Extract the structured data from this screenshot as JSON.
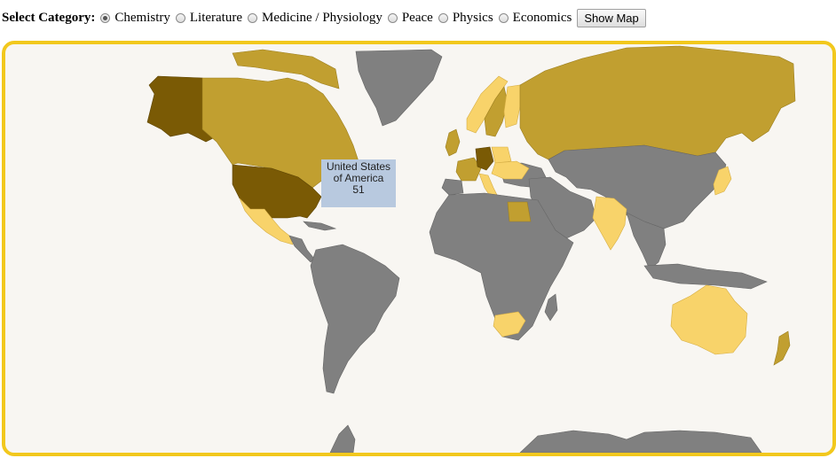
{
  "selector": {
    "label": "Select Category:",
    "options": [
      "Chemistry",
      "Literature",
      "Medicine / Physiology",
      "Peace",
      "Physics",
      "Economics"
    ],
    "selected": "Chemistry",
    "button_label": "Show Map"
  },
  "tooltip": {
    "country_line1": "United States",
    "country_line2": "of America",
    "count": "51"
  },
  "colors": {
    "frame": "#f2c81d",
    "ocean": "#f8f6f2",
    "no_data": "#808080",
    "level_dark": "#7a5a05",
    "level_mid": "#c19f30",
    "level_light": "#f8d36a",
    "tooltip_bg": "#b8c9df"
  },
  "highlighted_countries": {
    "dark": [
      "United States of America",
      "Germany"
    ],
    "mid": [
      "Canada",
      "Russia",
      "United Kingdom",
      "France",
      "Sweden",
      "Egypt"
    ],
    "light": [
      "Mexico",
      "India",
      "Australia",
      "South Africa",
      "Finland",
      "Poland",
      "Italy",
      "Japan",
      "Norway"
    ]
  }
}
